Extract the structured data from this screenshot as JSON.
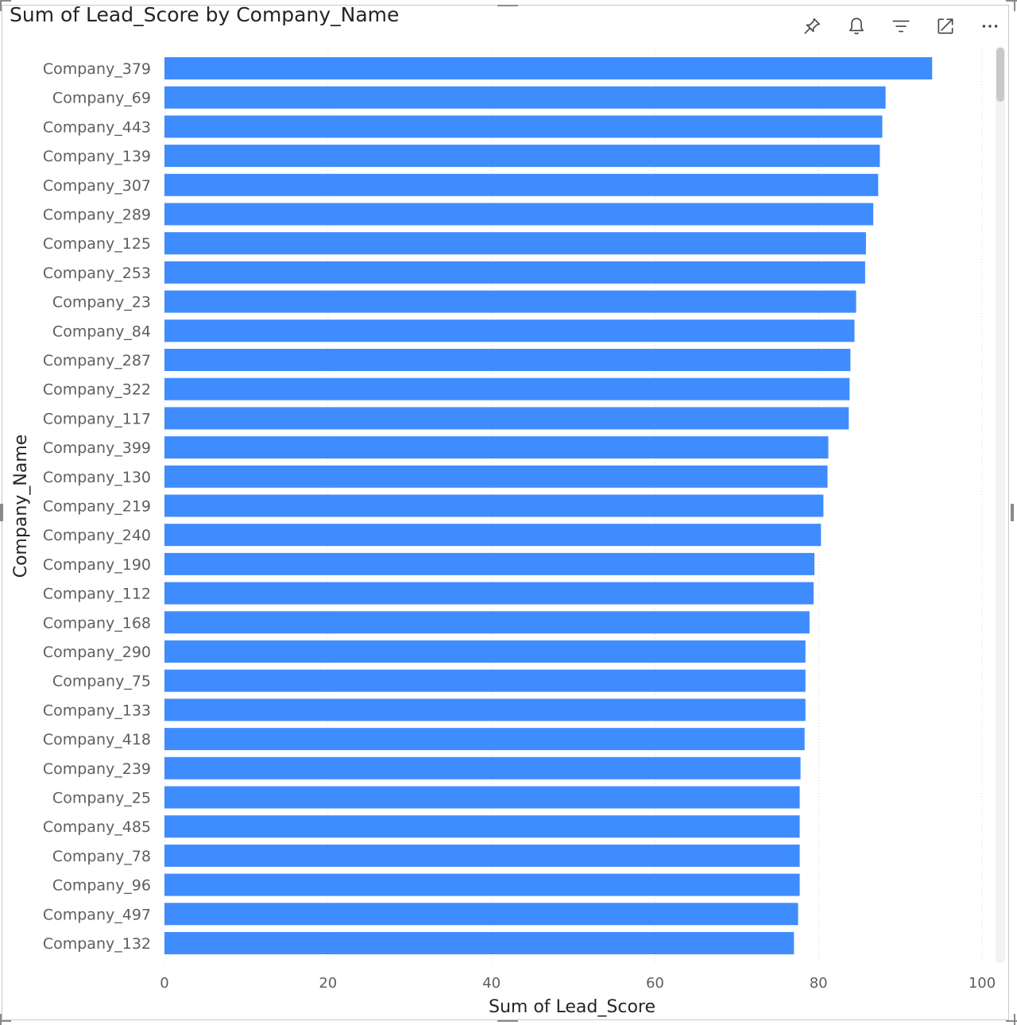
{
  "title": "Sum of Lead_Score by Company_Name",
  "toolbar": {
    "icons": [
      "pin-icon",
      "bell-icon",
      "filter-icon",
      "focus-mode-icon",
      "more-options-icon"
    ]
  },
  "colors": {
    "bar": "#3f8cff",
    "grid": "#d8d8d8"
  },
  "chart_data": {
    "type": "bar",
    "orientation": "horizontal",
    "xlabel": "Sum of Lead_Score",
    "ylabel": "Company_Name",
    "xlim": [
      0,
      100
    ],
    "xticks": [
      0,
      20,
      40,
      60,
      80,
      100
    ],
    "grid": true,
    "categories": [
      "Company_379",
      "Company_69",
      "Company_443",
      "Company_139",
      "Company_307",
      "Company_289",
      "Company_125",
      "Company_253",
      "Company_23",
      "Company_84",
      "Company_287",
      "Company_322",
      "Company_117",
      "Company_399",
      "Company_130",
      "Company_219",
      "Company_240",
      "Company_190",
      "Company_112",
      "Company_168",
      "Company_290",
      "Company_75",
      "Company_133",
      "Company_418",
      "Company_239",
      "Company_25",
      "Company_485",
      "Company_78",
      "Company_96",
      "Company_497",
      "Company_132"
    ],
    "values": [
      93.9,
      88.2,
      87.8,
      87.5,
      87.3,
      86.7,
      85.8,
      85.7,
      84.6,
      84.4,
      83.9,
      83.8,
      83.7,
      81.2,
      81.1,
      80.6,
      80.3,
      79.5,
      79.4,
      78.9,
      78.4,
      78.4,
      78.4,
      78.3,
      77.8,
      77.7,
      77.7,
      77.7,
      77.7,
      77.5,
      77.0
    ]
  }
}
